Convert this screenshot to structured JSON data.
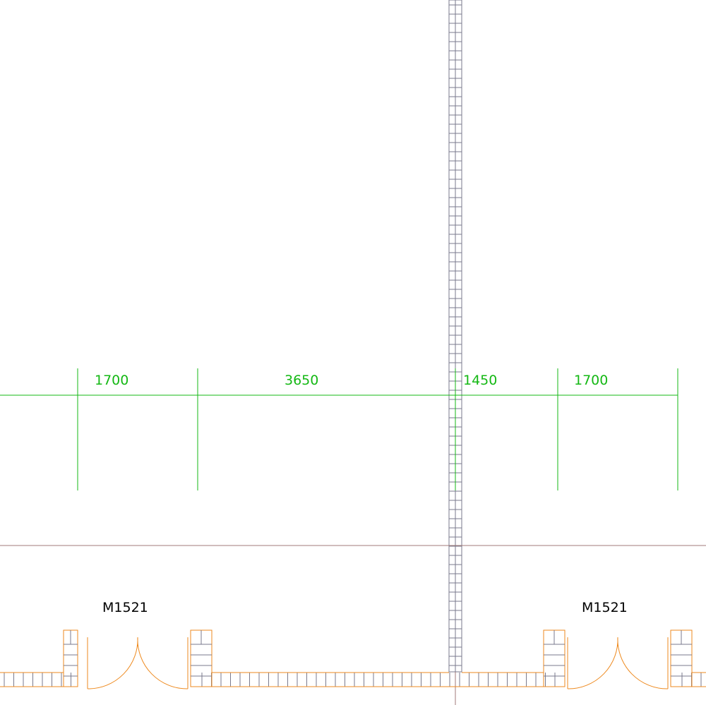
{
  "colors": {
    "background": "#ffffff",
    "dimension": "#14b814",
    "wall": "#ee8a1f",
    "column": "#7a7a8c",
    "axis": "#a07878",
    "label": "#000000"
  },
  "dimensions": {
    "segments": [
      {
        "label": "1700"
      },
      {
        "label": "3650"
      },
      {
        "label": "1450"
      },
      {
        "label": "1700"
      }
    ]
  },
  "doors": [
    {
      "label": "M1521"
    },
    {
      "label": "M1521"
    }
  ]
}
